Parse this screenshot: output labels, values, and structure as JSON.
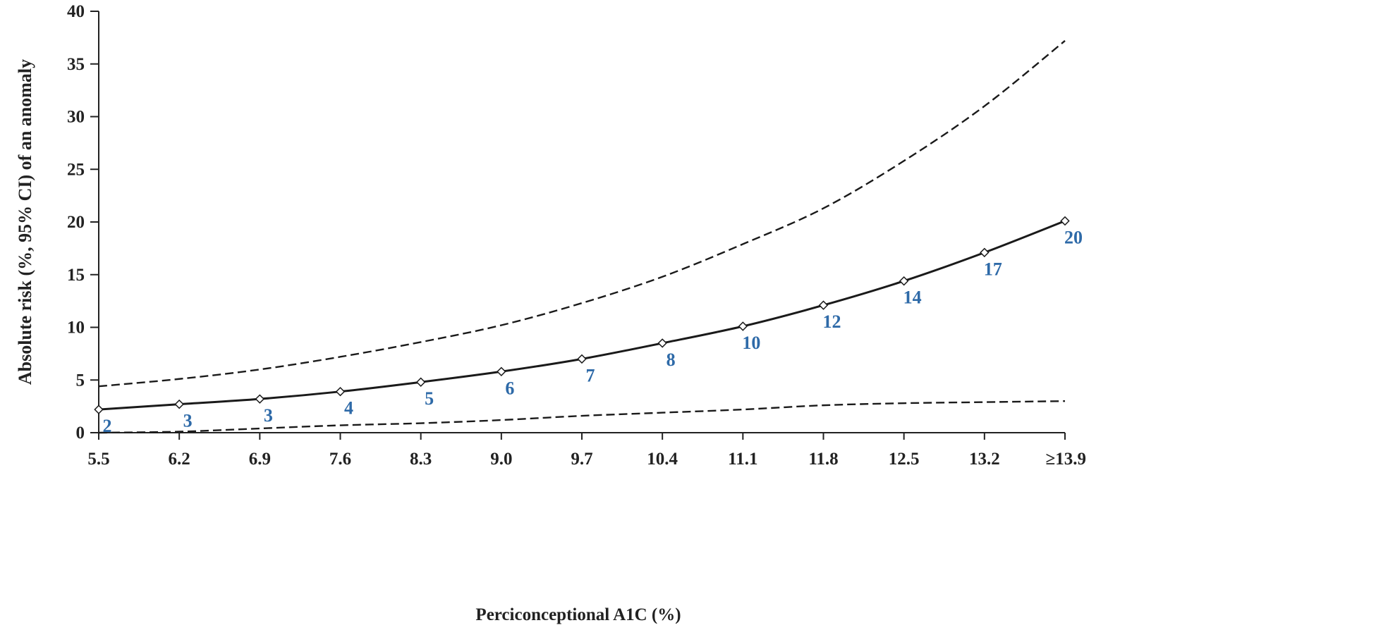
{
  "chart_data": {
    "type": "line",
    "title": "",
    "xlabel": "Perciconceptional A1C (%)",
    "ylabel": "Absolute risk (%, 95% CI) of an anomaly",
    "categories": [
      "5.5",
      "6.2",
      "6.9",
      "7.6",
      "8.3",
      "9.0",
      "9.7",
      "10.4",
      "11.1",
      "11.8",
      "12.5",
      "13.2",
      "≥13.9"
    ],
    "ylim": [
      0,
      40
    ],
    "yticks": [
      0,
      5,
      10,
      15,
      20,
      25,
      30,
      35,
      40
    ],
    "grid": false,
    "legend": "none",
    "series": [
      {
        "role": "estimate",
        "style": "solid",
        "markers": true,
        "values": [
          2.2,
          2.7,
          3.2,
          3.9,
          4.8,
          5.8,
          7.0,
          8.5,
          10.1,
          12.1,
          14.4,
          17.1,
          20.1
        ],
        "data_labels": [
          "2",
          "3",
          "3",
          "4",
          "5",
          "6",
          "7",
          "8",
          "10",
          "12",
          "14",
          "17",
          "20"
        ]
      },
      {
        "role": "upper-95-ci",
        "style": "dashed",
        "markers": false,
        "values": [
          4.4,
          5.1,
          6.0,
          7.2,
          8.6,
          10.2,
          12.3,
          14.8,
          17.9,
          21.3,
          25.8,
          31.0,
          37.2
        ]
      },
      {
        "role": "lower-95-ci",
        "style": "dashed",
        "markers": false,
        "values": [
          0.0,
          0.1,
          0.4,
          0.7,
          0.9,
          1.2,
          1.6,
          1.9,
          2.2,
          2.6,
          2.8,
          2.9,
          3.0
        ]
      }
    ],
    "colors": {
      "line": "#1a1a1a",
      "data_label": "#2e6aa8",
      "axis": "#222222"
    }
  }
}
